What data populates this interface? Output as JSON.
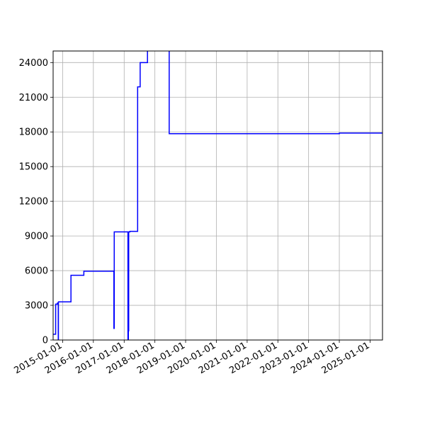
{
  "chart_data": {
    "type": "line",
    "title": "",
    "xlabel": "",
    "ylabel": "",
    "x_axis_type": "date",
    "xlim": [
      "2014-09-10",
      "2025-05-28"
    ],
    "ylim": [
      0,
      25000
    ],
    "grid": true,
    "legend": "none",
    "x_ticks": [
      "2015-01-01",
      "2016-01-01",
      "2017-01-01",
      "2018-01-01",
      "2019-01-01",
      "2020-01-01",
      "2021-01-01",
      "2022-01-01",
      "2023-01-01",
      "2024-01-01",
      "2025-01-01"
    ],
    "y_ticks": [
      0,
      3000,
      6000,
      9000,
      12000,
      15000,
      18000,
      21000,
      24000
    ],
    "series": [
      {
        "color": "#0000ff",
        "step": "post",
        "points": [
          [
            "2014-09-10",
            500
          ],
          [
            "2014-10-10",
            3100
          ],
          [
            "2014-11-01",
            3200
          ],
          [
            "2014-11-10",
            0
          ],
          [
            "2014-11-12",
            3300
          ],
          [
            "2015-04-10",
            5600
          ],
          [
            "2015-09-10",
            5950
          ],
          [
            "2016-09-01",
            1000
          ],
          [
            "2016-09-05",
            9350
          ],
          [
            "2017-02-15",
            0
          ],
          [
            "2017-02-20",
            800
          ],
          [
            "2017-02-24",
            9350
          ],
          [
            "2017-03-10",
            9400
          ],
          [
            "2017-06-10",
            21900
          ],
          [
            "2017-07-10",
            24000
          ],
          [
            "2017-10-01",
            24000
          ],
          [
            "2017-10-05",
            25500
          ],
          [
            "2018-06-20",
            17850
          ],
          [
            "2024-01-01",
            17900
          ],
          [
            "2025-05-28",
            17900
          ]
        ]
      }
    ]
  }
}
